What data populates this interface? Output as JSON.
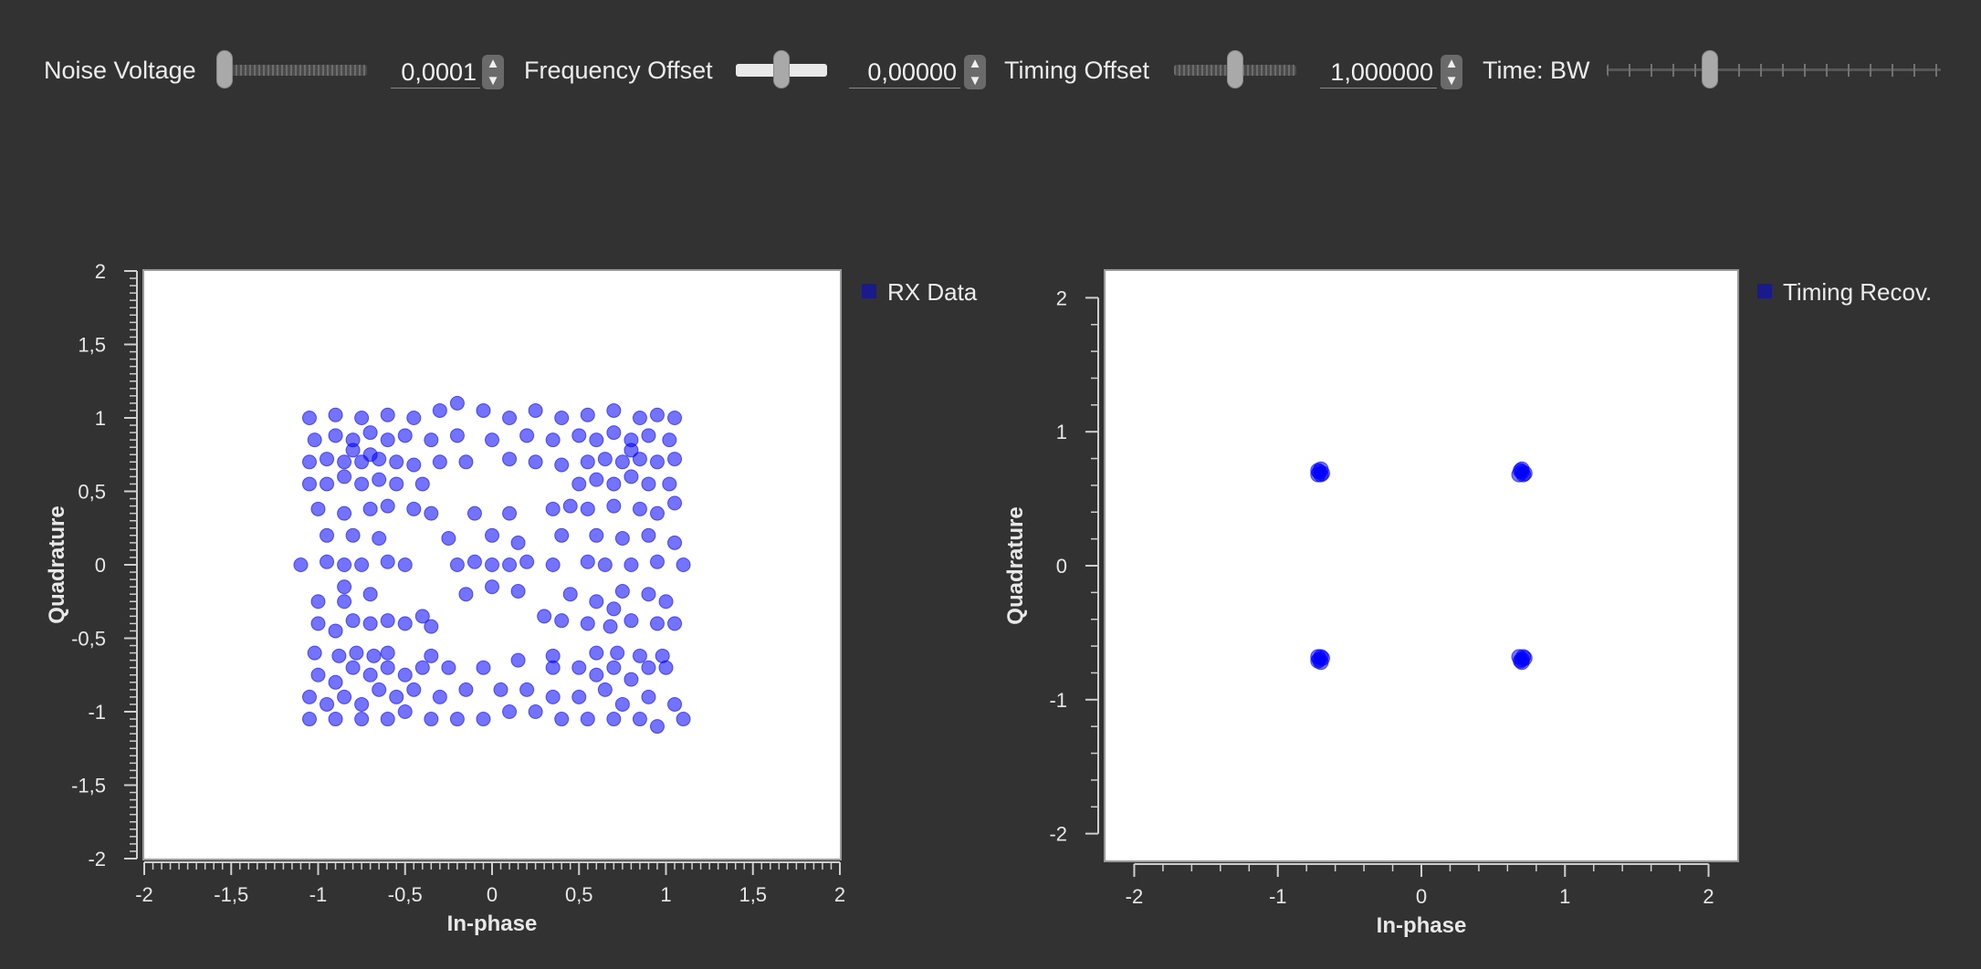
{
  "controls": {
    "noise_voltage": {
      "label": "Noise Voltage",
      "value": "0,0001",
      "level": 0.0
    },
    "frequency_offset": {
      "label": "Frequency Offset",
      "value": "0,00000",
      "level": 0.5
    },
    "timing_offset": {
      "label": "Timing Offset",
      "value": "1,000000",
      "level": 0.5
    },
    "time_bw": {
      "label": "Time: BW",
      "level": 0.3
    }
  },
  "spin_icons": {
    "up": "chevron-up-icon",
    "down": "chevron-down-icon"
  },
  "colors": {
    "background": "#323232",
    "plot_bg": "#ffffff",
    "points": "#0000ff",
    "legend_marker": "#1a1a8c"
  },
  "chart_data": [
    {
      "type": "scatter",
      "title": "",
      "xlabel": "In-phase",
      "ylabel": "Quadrature",
      "xlim": [
        -2,
        2
      ],
      "ylim": [
        -2,
        2
      ],
      "xticks": [
        "-2",
        "-1,5",
        "-1",
        "-0,5",
        "0",
        "0,5",
        "1",
        "1,5",
        "2"
      ],
      "yticks": [
        "2",
        "1,5",
        "1",
        "0,5",
        "0",
        "-0,5",
        "-1",
        "-1,5",
        "-2"
      ],
      "legend": "top-right outside",
      "series": [
        {
          "name": "RX Data",
          "points": [
            [
              -1.05,
              -1.05
            ],
            [
              -0.9,
              -1.05
            ],
            [
              -0.75,
              -1.05
            ],
            [
              -0.6,
              -1.05
            ],
            [
              -0.5,
              -1.0
            ],
            [
              -0.35,
              -1.05
            ],
            [
              -0.2,
              -1.05
            ],
            [
              -0.05,
              -1.05
            ],
            [
              0.1,
              -1.0
            ],
            [
              0.25,
              -1.0
            ],
            [
              0.4,
              -1.05
            ],
            [
              0.55,
              -1.05
            ],
            [
              0.7,
              -1.05
            ],
            [
              0.85,
              -1.05
            ],
            [
              0.95,
              -1.1
            ],
            [
              1.1,
              -1.05
            ],
            [
              -1.05,
              -0.9
            ],
            [
              -0.95,
              -0.95
            ],
            [
              -0.85,
              -0.9
            ],
            [
              -0.75,
              -0.95
            ],
            [
              -0.65,
              -0.85
            ],
            [
              -0.55,
              -0.9
            ],
            [
              -0.45,
              -0.85
            ],
            [
              -0.3,
              -0.9
            ],
            [
              -0.15,
              -0.85
            ],
            [
              0.05,
              -0.85
            ],
            [
              0.2,
              -0.85
            ],
            [
              0.35,
              -0.9
            ],
            [
              0.5,
              -0.9
            ],
            [
              0.65,
              -0.85
            ],
            [
              0.75,
              -0.95
            ],
            [
              0.9,
              -0.9
            ],
            [
              1.05,
              -0.95
            ],
            [
              -1.0,
              -0.75
            ],
            [
              -0.9,
              -0.8
            ],
            [
              -0.8,
              -0.7
            ],
            [
              -0.7,
              -0.75
            ],
            [
              -0.6,
              -0.7
            ],
            [
              -0.5,
              -0.75
            ],
            [
              -0.4,
              -0.7
            ],
            [
              -0.25,
              -0.7
            ],
            [
              -0.05,
              -0.7
            ],
            [
              0.15,
              -0.65
            ],
            [
              0.35,
              -0.7
            ],
            [
              0.5,
              -0.7
            ],
            [
              0.6,
              -0.75
            ],
            [
              0.7,
              -0.7
            ],
            [
              0.8,
              -0.78
            ],
            [
              0.9,
              -0.7
            ],
            [
              1.0,
              -0.7
            ],
            [
              -1.02,
              -0.6
            ],
            [
              -0.88,
              -0.62
            ],
            [
              -0.78,
              -0.6
            ],
            [
              -0.68,
              -0.62
            ],
            [
              -0.6,
              -0.6
            ],
            [
              -0.35,
              -0.62
            ],
            [
              0.35,
              -0.62
            ],
            [
              0.6,
              -0.6
            ],
            [
              0.72,
              -0.6
            ],
            [
              0.85,
              -0.62
            ],
            [
              0.98,
              -0.62
            ],
            [
              -1.0,
              -0.4
            ],
            [
              -0.9,
              -0.45
            ],
            [
              -0.8,
              -0.38
            ],
            [
              -0.7,
              -0.4
            ],
            [
              -0.6,
              -0.38
            ],
            [
              -0.5,
              -0.4
            ],
            [
              -0.4,
              -0.35
            ],
            [
              -0.35,
              -0.42
            ],
            [
              0.3,
              -0.35
            ],
            [
              0.4,
              -0.38
            ],
            [
              0.55,
              -0.4
            ],
            [
              0.68,
              -0.42
            ],
            [
              0.8,
              -0.38
            ],
            [
              0.95,
              -0.4
            ],
            [
              1.05,
              -0.4
            ],
            [
              -1.0,
              -0.25
            ],
            [
              -0.85,
              -0.25
            ],
            [
              -0.7,
              -0.2
            ],
            [
              -0.85,
              -0.15
            ],
            [
              0.45,
              -0.2
            ],
            [
              0.6,
              -0.25
            ],
            [
              0.75,
              -0.18
            ],
            [
              0.9,
              -0.2
            ],
            [
              1.0,
              -0.25
            ],
            [
              0.7,
              -0.3
            ],
            [
              -1.1,
              0.0
            ],
            [
              -0.95,
              0.02
            ],
            [
              -0.85,
              0.0
            ],
            [
              -0.75,
              0.0
            ],
            [
              -0.6,
              0.02
            ],
            [
              -0.5,
              0.0
            ],
            [
              -0.2,
              0.0
            ],
            [
              -0.1,
              0.02
            ],
            [
              0.0,
              0.0
            ],
            [
              0.1,
              0.0
            ],
            [
              0.2,
              0.02
            ],
            [
              0.35,
              0.0
            ],
            [
              0.55,
              0.02
            ],
            [
              0.65,
              0.0
            ],
            [
              0.8,
              0.0
            ],
            [
              0.95,
              0.02
            ],
            [
              1.1,
              0.0
            ],
            [
              -0.95,
              0.2
            ],
            [
              -0.8,
              0.2
            ],
            [
              -0.65,
              0.18
            ],
            [
              -0.25,
              0.18
            ],
            [
              0.0,
              0.2
            ],
            [
              0.15,
              0.15
            ],
            [
              0.4,
              0.2
            ],
            [
              0.6,
              0.2
            ],
            [
              0.75,
              0.18
            ],
            [
              0.9,
              0.2
            ],
            [
              1.05,
              0.15
            ],
            [
              -0.15,
              -0.2
            ],
            [
              0.0,
              -0.15
            ],
            [
              0.15,
              -0.18
            ],
            [
              -0.1,
              0.35
            ],
            [
              0.1,
              0.35
            ],
            [
              -1.0,
              0.38
            ],
            [
              -0.85,
              0.35
            ],
            [
              -0.7,
              0.38
            ],
            [
              -0.6,
              0.4
            ],
            [
              -0.45,
              0.38
            ],
            [
              -0.35,
              0.35
            ],
            [
              0.35,
              0.38
            ],
            [
              0.45,
              0.4
            ],
            [
              0.55,
              0.38
            ],
            [
              0.7,
              0.4
            ],
            [
              0.85,
              0.38
            ],
            [
              0.95,
              0.35
            ],
            [
              1.05,
              0.42
            ],
            [
              -1.05,
              0.55
            ],
            [
              -0.95,
              0.55
            ],
            [
              -0.85,
              0.6
            ],
            [
              -0.75,
              0.55
            ],
            [
              -0.65,
              0.58
            ],
            [
              -0.55,
              0.55
            ],
            [
              -0.4,
              0.55
            ],
            [
              0.5,
              0.55
            ],
            [
              0.6,
              0.58
            ],
            [
              0.7,
              0.55
            ],
            [
              0.8,
              0.6
            ],
            [
              0.9,
              0.55
            ],
            [
              1.02,
              0.55
            ],
            [
              -1.05,
              0.7
            ],
            [
              -0.95,
              0.72
            ],
            [
              -0.85,
              0.7
            ],
            [
              -0.8,
              0.78
            ],
            [
              -0.75,
              0.7
            ],
            [
              -0.7,
              0.75
            ],
            [
              -0.65,
              0.72
            ],
            [
              -0.55,
              0.7
            ],
            [
              -0.45,
              0.68
            ],
            [
              -0.3,
              0.7
            ],
            [
              -0.15,
              0.7
            ],
            [
              0.1,
              0.72
            ],
            [
              0.25,
              0.7
            ],
            [
              0.4,
              0.68
            ],
            [
              0.55,
              0.7
            ],
            [
              0.65,
              0.72
            ],
            [
              0.75,
              0.7
            ],
            [
              0.8,
              0.78
            ],
            [
              0.85,
              0.72
            ],
            [
              0.95,
              0.7
            ],
            [
              1.05,
              0.72
            ],
            [
              -1.02,
              0.85
            ],
            [
              -0.9,
              0.88
            ],
            [
              -0.8,
              0.85
            ],
            [
              -0.7,
              0.9
            ],
            [
              -0.6,
              0.85
            ],
            [
              -0.5,
              0.88
            ],
            [
              -0.35,
              0.85
            ],
            [
              -0.2,
              0.88
            ],
            [
              0.0,
              0.85
            ],
            [
              0.2,
              0.88
            ],
            [
              0.35,
              0.85
            ],
            [
              0.5,
              0.88
            ],
            [
              0.6,
              0.85
            ],
            [
              0.7,
              0.9
            ],
            [
              0.8,
              0.85
            ],
            [
              0.9,
              0.88
            ],
            [
              1.02,
              0.85
            ],
            [
              -1.05,
              1.0
            ],
            [
              -0.9,
              1.02
            ],
            [
              -0.75,
              1.0
            ],
            [
              -0.6,
              1.02
            ],
            [
              -0.45,
              1.0
            ],
            [
              -0.3,
              1.05
            ],
            [
              -0.2,
              1.1
            ],
            [
              -0.05,
              1.05
            ],
            [
              0.1,
              1.0
            ],
            [
              0.25,
              1.05
            ],
            [
              0.4,
              1.0
            ],
            [
              0.55,
              1.02
            ],
            [
              0.7,
              1.05
            ],
            [
              0.85,
              1.0
            ],
            [
              0.95,
              1.02
            ],
            [
              1.05,
              1.0
            ]
          ]
        }
      ]
    },
    {
      "type": "scatter",
      "title": "",
      "xlabel": "In-phase",
      "ylabel": "Quadrature",
      "xlim": [
        -2.2,
        2.2
      ],
      "ylim": [
        -2.2,
        2.2
      ],
      "xticks": [
        "-2",
        "-1",
        "0",
        "1",
        "2"
      ],
      "yticks": [
        "2",
        "1",
        "0",
        "-1",
        "-2"
      ],
      "legend": "top-right outside",
      "series": [
        {
          "name": "Timing Recov.",
          "points": [
            [
              -0.71,
              0.7
            ],
            [
              -0.7,
              0.68
            ],
            [
              -0.72,
              0.71
            ],
            [
              -0.69,
              0.69
            ],
            [
              -0.7,
              0.72
            ],
            [
              -0.72,
              0.68
            ],
            [
              0.7,
              0.7
            ],
            [
              0.71,
              0.68
            ],
            [
              0.69,
              0.71
            ],
            [
              0.72,
              0.69
            ],
            [
              0.7,
              0.72
            ],
            [
              0.68,
              0.68
            ],
            [
              -0.71,
              -0.7
            ],
            [
              -0.7,
              -0.68
            ],
            [
              -0.72,
              -0.71
            ],
            [
              -0.69,
              -0.69
            ],
            [
              -0.7,
              -0.72
            ],
            [
              -0.72,
              -0.68
            ],
            [
              0.7,
              -0.7
            ],
            [
              0.71,
              -0.68
            ],
            [
              0.69,
              -0.71
            ],
            [
              0.72,
              -0.69
            ],
            [
              0.7,
              -0.72
            ],
            [
              0.68,
              -0.68
            ]
          ]
        }
      ]
    }
  ]
}
